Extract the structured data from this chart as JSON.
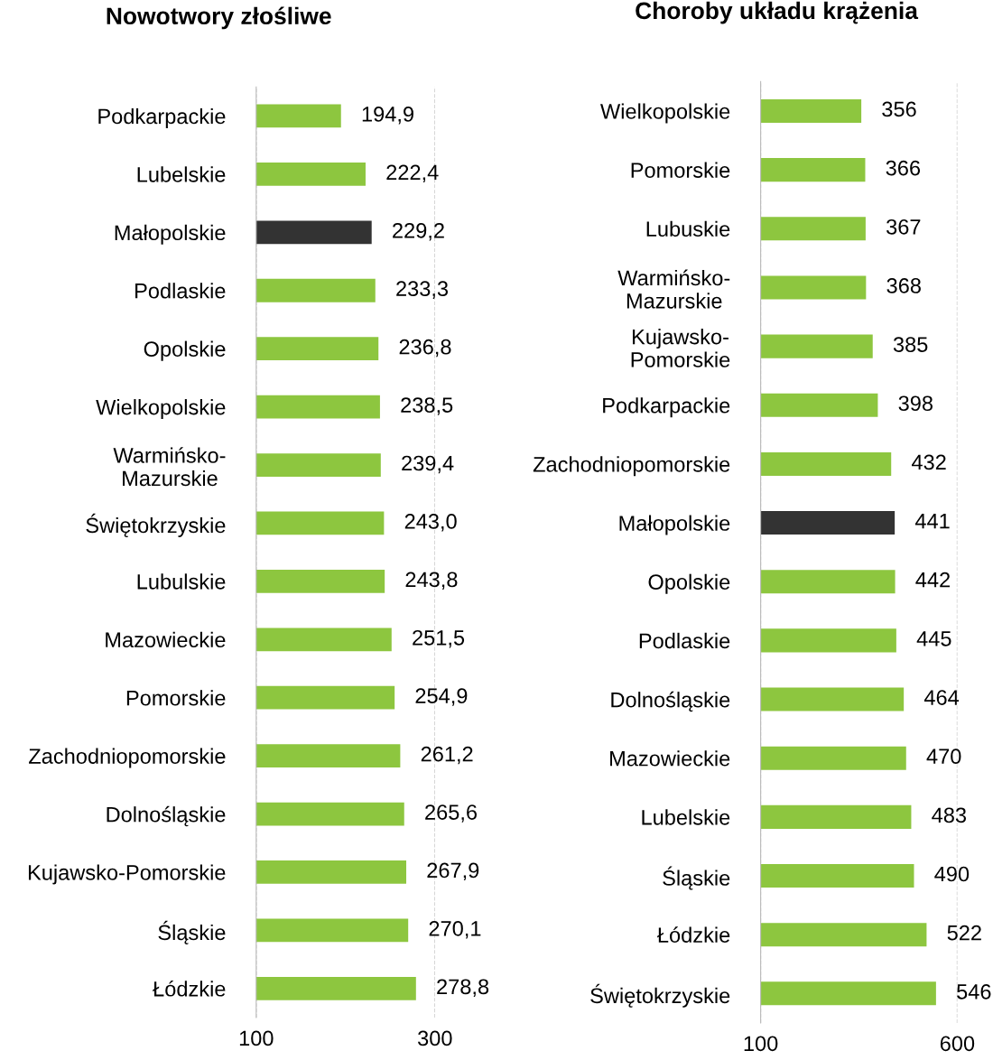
{
  "chart_data": [
    {
      "type": "bar",
      "orientation": "horizontal",
      "title": "Nowotwory złośliwe",
      "categories": [
        "Podkarpackie",
        "Lubelskie",
        "Małopolskie",
        "Podlaskie",
        "Opolskie",
        "Wielkopolskie",
        "Warmińsko-\nMazurskie",
        "Świętokrzyskie",
        "Lubulskie",
        "Mazowieckie",
        "Pomorskie",
        "Zachodniopomorskie",
        "Dolnośląskie",
        "Kujawsko-Pomorskie",
        "Śląskie",
        "Łódzkie"
      ],
      "values": [
        194.9,
        222.4,
        229.2,
        233.3,
        236.8,
        238.5,
        239.4,
        243.0,
        243.8,
        251.5,
        254.9,
        261.2,
        265.6,
        267.9,
        270.1,
        278.8
      ],
      "value_labels": [
        "194,9",
        "222,4",
        "229,2",
        "233,3",
        "236,8",
        "238,5",
        "239,4",
        "243,0",
        "243,8",
        "251,5",
        "254,9",
        "261,2",
        "265,6",
        "267,9",
        "270,1",
        "278,8"
      ],
      "colors": [
        "#8dc63f",
        "#8dc63f",
        "#333333",
        "#8dc63f",
        "#8dc63f",
        "#8dc63f",
        "#8dc63f",
        "#8dc63f",
        "#8dc63f",
        "#8dc63f",
        "#8dc63f",
        "#8dc63f",
        "#8dc63f",
        "#8dc63f",
        "#8dc63f",
        "#8dc63f"
      ],
      "xlim": [
        100,
        300
      ],
      "xticks": [
        100,
        300
      ],
      "grid": "x",
      "line_style": "dashed",
      "legend": false
    },
    {
      "type": "bar",
      "orientation": "horizontal",
      "title": "Choroby układu krążenia",
      "categories": [
        "Wielkopolskie",
        "Pomorskie",
        "Lubuskie",
        "Warmińsko-\nMazurskie",
        "Kujawsko-\nPomorskie",
        "Podkarpackie",
        "Zachodniopomorskie",
        "Małopolskie",
        "Opolskie",
        "Podlaskie",
        "Dolnośląskie",
        "Mazowieckie",
        "Lubelskie",
        "Śląskie",
        "Łódzkie",
        "Świętokrzyskie"
      ],
      "values": [
        356,
        366,
        367,
        368,
        385,
        398,
        432,
        441,
        442,
        445,
        464,
        470,
        483,
        490,
        522,
        546
      ],
      "value_labels": [
        "356",
        "366",
        "367",
        "368",
        "385",
        "398",
        "432",
        "441",
        "442",
        "445",
        "464",
        "470",
        "483",
        "490",
        "522",
        "546"
      ],
      "colors": [
        "#8dc63f",
        "#8dc63f",
        "#8dc63f",
        "#8dc63f",
        "#8dc63f",
        "#8dc63f",
        "#8dc63f",
        "#333333",
        "#8dc63f",
        "#8dc63f",
        "#8dc63f",
        "#8dc63f",
        "#8dc63f",
        "#8dc63f",
        "#8dc63f",
        "#8dc63f"
      ],
      "xlim": [
        100,
        600
      ],
      "xticks": [
        100,
        600
      ],
      "grid": "x",
      "line_style": "dashed",
      "legend": false
    }
  ]
}
